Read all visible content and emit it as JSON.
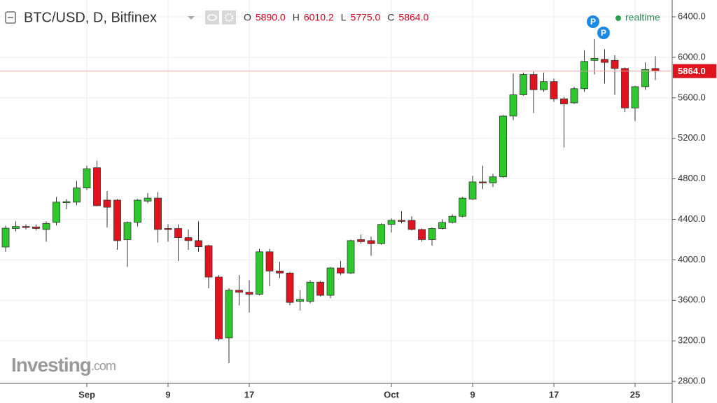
{
  "chart_data": {
    "type": "candlestick",
    "title": "BTC/USD, D, Bitfinex",
    "ohlc_header": [
      {
        "key": "O",
        "label": "5890.0"
      },
      {
        "key": "H",
        "label": "6010.2"
      },
      {
        "key": "L",
        "label": "5775.0"
      },
      {
        "key": "C",
        "label": "5864.0"
      }
    ],
    "status": "realtime",
    "event_markers": [
      "P",
      "P"
    ],
    "watermark": {
      "brand": "Investing",
      "suffix": ".com"
    },
    "last_price": {
      "value": 5864,
      "label": "5864.0"
    },
    "up_color": "#2ec72e",
    "down_color": "#e0141e",
    "categories": [
      null,
      null,
      null,
      null,
      null,
      null,
      null,
      null,
      "Sep",
      null,
      null,
      null,
      null,
      null,
      null,
      null,
      "9",
      null,
      null,
      null,
      null,
      null,
      null,
      null,
      "17",
      null,
      null,
      null,
      null,
      null,
      null,
      null,
      null,
      null,
      null,
      null,
      null,
      null,
      "Oct",
      null,
      null,
      null,
      null,
      null,
      null,
      null,
      "9",
      null,
      null,
      null,
      null,
      null,
      null,
      null,
      "17",
      null,
      null,
      null,
      null,
      null,
      null,
      null,
      "25",
      null,
      null
    ],
    "series": [
      {
        "name": "Open",
        "values": [
          4127,
          4310,
          4330,
          4325,
          4300,
          4370,
          4565,
          4570,
          4710,
          4910,
          4590,
          4590,
          4200,
          4370,
          4580,
          4610,
          4310,
          4310,
          4220,
          4190,
          4140,
          3830,
          3230,
          3700,
          3680,
          3660,
          4080,
          3890,
          3870,
          3590,
          3590,
          3780,
          3650,
          3920,
          3870,
          4200,
          4190,
          4160,
          4350,
          4390,
          4390,
          4300,
          4200,
          4310,
          4370,
          4430,
          4600,
          4770,
          4760,
          4820,
          5420,
          5630,
          5830,
          5680,
          5760,
          5590,
          5550,
          5690,
          5970,
          5980,
          5970,
          5890,
          5500,
          5710,
          5890
        ]
      },
      {
        "name": "High",
        "values": [
          4340,
          4380,
          4350,
          4350,
          4380,
          4620,
          4600,
          4780,
          4930,
          4980,
          4680,
          4600,
          4380,
          4600,
          4660,
          4670,
          4350,
          4350,
          4300,
          4380,
          4150,
          3850,
          3720,
          3850,
          3800,
          4110,
          4110,
          3980,
          3880,
          3700,
          3800,
          3790,
          3930,
          3990,
          4200,
          4250,
          4230,
          4360,
          4410,
          4480,
          4430,
          4310,
          4320,
          4400,
          4450,
          4620,
          4830,
          4930,
          4850,
          5430,
          5840,
          5850,
          5860,
          5850,
          5790,
          5610,
          5710,
          6070,
          6180,
          6080,
          6020,
          5900,
          5720,
          5950,
          6010
        ]
      },
      {
        "name": "Low",
        "values": [
          4080,
          4280,
          4300,
          4290,
          4180,
          4340,
          4500,
          4540,
          4690,
          4530,
          4320,
          4100,
          3930,
          4330,
          4560,
          4170,
          4180,
          3990,
          4100,
          4080,
          3720,
          3200,
          2980,
          3550,
          3480,
          3650,
          3740,
          3820,
          3550,
          3500,
          3570,
          3640,
          3620,
          3850,
          3860,
          4160,
          4040,
          4150,
          4270,
          4360,
          4290,
          4180,
          4140,
          4300,
          4360,
          4420,
          4590,
          4700,
          4720,
          4810,
          5380,
          5620,
          5450,
          5660,
          5560,
          5110,
          5540,
          5660,
          5830,
          5740,
          5630,
          5460,
          5370,
          5680,
          5775
        ]
      },
      {
        "name": "Close",
        "values": [
          4313,
          4330,
          4320,
          4310,
          4360,
          4570,
          4575,
          4710,
          4900,
          4535,
          4520,
          4190,
          4370,
          4590,
          4610,
          4300,
          4300,
          4220,
          4190,
          4130,
          3830,
          3220,
          3700,
          3680,
          3660,
          4080,
          3890,
          3870,
          3580,
          3610,
          3780,
          3650,
          3920,
          3870,
          4190,
          4180,
          4160,
          4350,
          4390,
          4380,
          4300,
          4200,
          4310,
          4370,
          4430,
          4610,
          4770,
          4760,
          4820,
          5420,
          5630,
          5830,
          5680,
          5760,
          5590,
          5540,
          5690,
          5960,
          5990,
          5950,
          5890,
          5500,
          5710,
          5880,
          5864
        ]
      }
    ],
    "ylim": [
      2780,
      6566
    ],
    "yticks": [
      {
        "value": 2800,
        "label": "2800.0"
      },
      {
        "value": 3200,
        "label": "3200.0"
      },
      {
        "value": 3600,
        "label": "3600.0"
      },
      {
        "value": 4000,
        "label": "4000.0"
      },
      {
        "value": 4400,
        "label": "4400.0"
      },
      {
        "value": 4800,
        "label": "4800.0"
      },
      {
        "value": 5200,
        "label": "5200.0"
      },
      {
        "value": 5600,
        "label": "5600.0"
      },
      {
        "value": 6000,
        "label": "6000.0"
      },
      {
        "value": 6400,
        "label": "6400.0"
      }
    ],
    "grid": true
  }
}
